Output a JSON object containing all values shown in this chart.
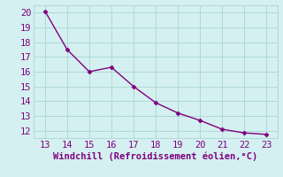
{
  "x": [
    13,
    14,
    15,
    16,
    17,
    18,
    19,
    20,
    21,
    22,
    23
  ],
  "y": [
    20.1,
    17.5,
    16.0,
    16.3,
    15.0,
    13.9,
    13.2,
    12.7,
    12.1,
    11.85,
    11.75
  ],
  "line_color": "#800080",
  "marker": "D",
  "marker_size": 2.5,
  "xlabel": "Windchill (Refroidissement éolien,°C)",
  "xlim": [
    12.5,
    23.5
  ],
  "ylim": [
    11.5,
    20.5
  ],
  "xticks": [
    13,
    14,
    15,
    16,
    17,
    18,
    19,
    20,
    21,
    22,
    23
  ],
  "yticks": [
    12,
    13,
    14,
    15,
    16,
    17,
    18,
    19,
    20
  ],
  "background_color": "#d4f0f0",
  "grid_color": "#b0d8d8",
  "tick_color": "#800080",
  "label_color": "#800080",
  "font_size": 7.5
}
